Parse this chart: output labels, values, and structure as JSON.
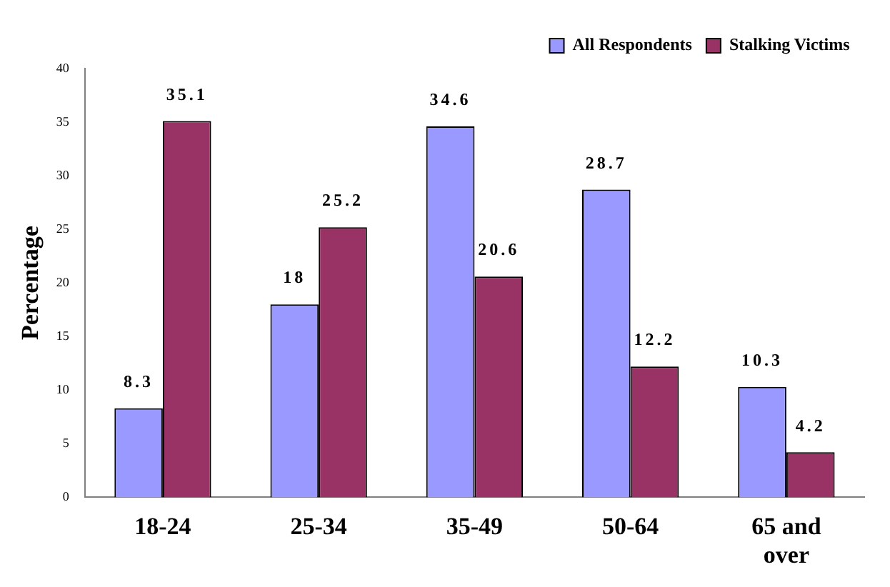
{
  "chart_data": {
    "type": "bar",
    "ylabel": "Percentage",
    "categories": [
      "18-24",
      "25-34",
      "35-49",
      "50-64",
      "65 and over"
    ],
    "series": [
      {
        "name": "All Respondents",
        "color": "#9999ff",
        "values": [
          8.3,
          18,
          34.6,
          28.7,
          10.3
        ]
      },
      {
        "name": "Stalking Victims",
        "color": "#993366",
        "values": [
          35.1,
          25.2,
          20.6,
          12.2,
          4.2
        ]
      }
    ],
    "ylim": [
      0,
      40
    ],
    "yticks": [
      0,
      5,
      10,
      15,
      20,
      25,
      30,
      35,
      40
    ],
    "grid": false,
    "legend": "top right",
    "data_labels": true
  }
}
